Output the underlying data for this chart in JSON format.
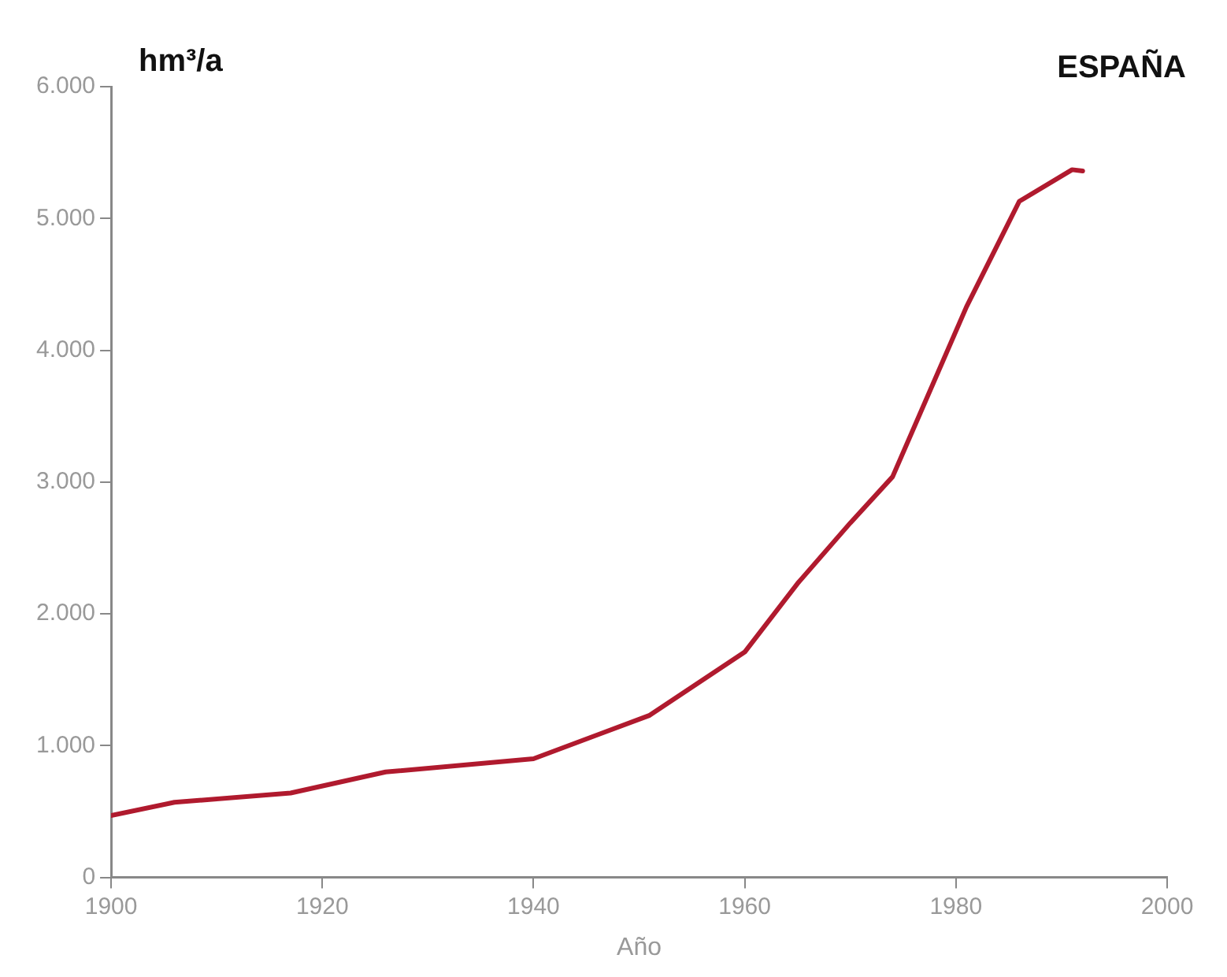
{
  "chart_data": {
    "type": "line",
    "title": "ESPAÑA",
    "ylabel": "hm³/a",
    "xlabel": "Año",
    "x": [
      1900,
      1906,
      1917,
      1926,
      1940,
      1951,
      1960,
      1965,
      1970,
      1974,
      1981,
      1986,
      1991,
      1992
    ],
    "series": [
      {
        "color": "#b01a2e",
        "values": [
          470,
          570,
          640,
          800,
          900,
          1230,
          1710,
          2230,
          2690,
          3040,
          4330,
          5130,
          5370,
          5360
        ]
      }
    ],
    "xlim": [
      1900,
      2000
    ],
    "xticks": [
      1900,
      1920,
      1940,
      1960,
      1980,
      2000
    ],
    "ylim": [
      0,
      6000
    ],
    "yticks": [
      0,
      {
        "value": 1000,
        "label": "1.000"
      },
      {
        "value": 2000,
        "label": "2.000"
      },
      {
        "value": 3000,
        "label": "3.000"
      },
      {
        "value": 4000,
        "label": "4.000"
      },
      {
        "value": 5000,
        "label": "5.000"
      },
      {
        "value": 6000,
        "label": "6.000"
      }
    ],
    "grid": false,
    "legend": false,
    "marker": "none",
    "line_style": "solid"
  }
}
